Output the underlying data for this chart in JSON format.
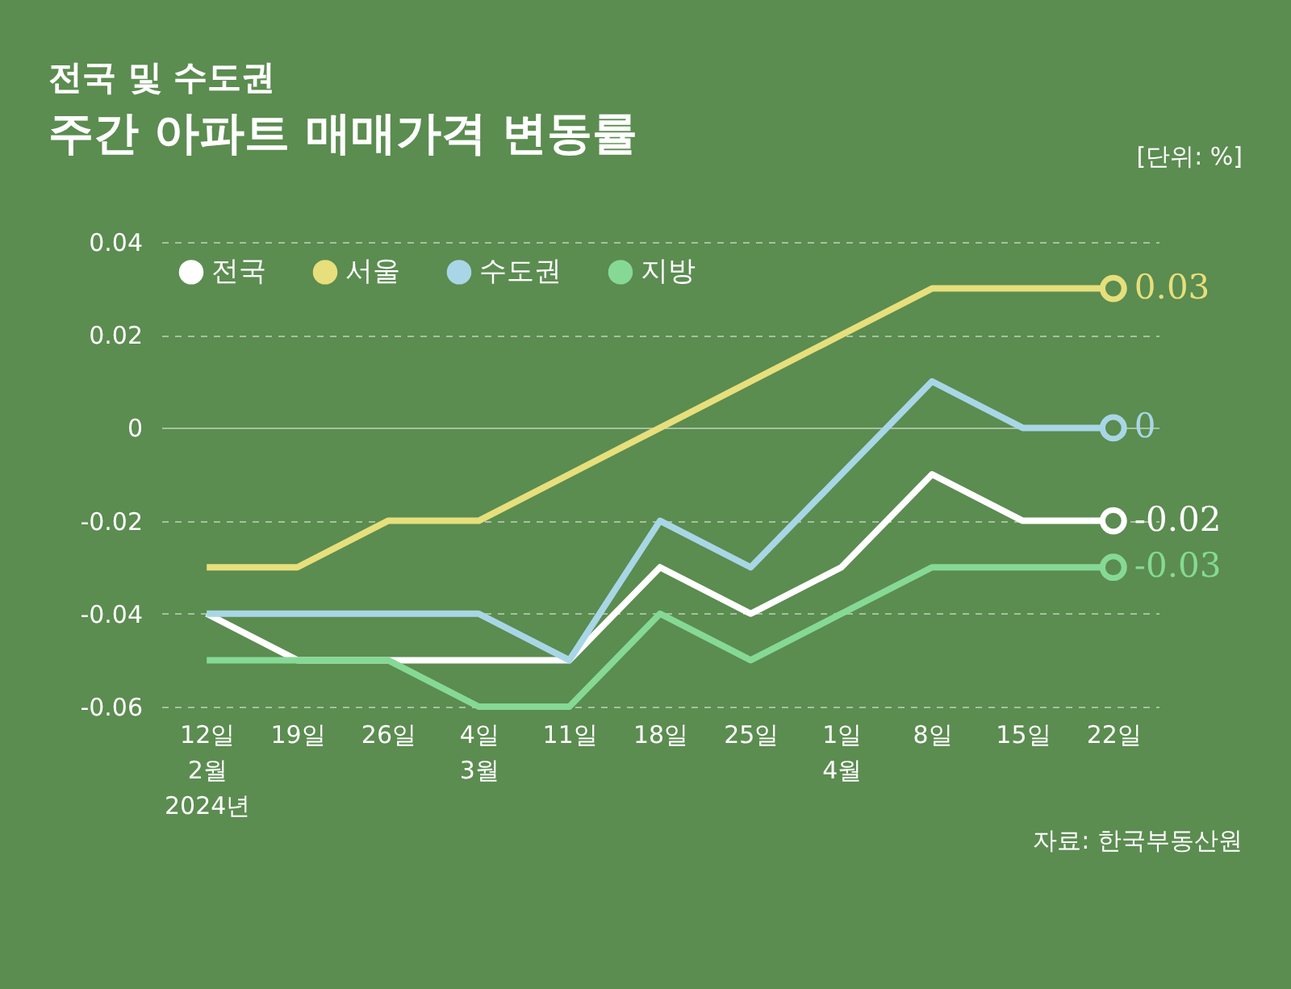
{
  "chart_data": {
    "type": "line",
    "title": "전국 및 수도권",
    "subtitle": "주간 아파트 매매가격 변동률",
    "annotations": [
      "[단위: %]",
      "자료: 한국부동산원"
    ],
    "categories": [
      "12일\n2월\n2024년",
      "19일",
      "26일",
      "4일\n3월",
      "11일",
      "18일",
      "25일",
      "1일\n4월",
      "8일",
      "15일",
      "22일"
    ],
    "series": [
      {
        "name": "전국",
        "color": "#ffffff",
        "values": [
          -0.04,
          -0.05,
          -0.05,
          -0.05,
          -0.05,
          -0.03,
          -0.04,
          -0.03,
          -0.01,
          -0.02,
          -0.02
        ],
        "value_labels": [
          null,
          null,
          null,
          null,
          null,
          null,
          null,
          null,
          null,
          null,
          "-0.02"
        ]
      },
      {
        "name": "서울",
        "color": "#e6df7c",
        "values": [
          -0.03,
          -0.03,
          -0.02,
          -0.02,
          -0.01,
          0,
          0.01,
          0.02,
          0.03,
          0.03,
          0.03
        ],
        "value_labels": [
          null,
          null,
          null,
          null,
          null,
          null,
          null,
          null,
          null,
          null,
          "0.03"
        ]
      },
      {
        "name": "수도권",
        "color": "#a9d6e6",
        "values": [
          -0.04,
          -0.04,
          -0.04,
          -0.04,
          -0.05,
          -0.02,
          -0.03,
          -0.01,
          0.01,
          0,
          0
        ],
        "value_labels": [
          null,
          null,
          null,
          null,
          null,
          null,
          null,
          null,
          null,
          null,
          "0"
        ]
      },
      {
        "name": "지방",
        "color": "#86d995",
        "values": [
          -0.05,
          -0.05,
          -0.05,
          -0.06,
          -0.06,
          -0.04,
          -0.05,
          -0.04,
          -0.03,
          -0.03,
          -0.03
        ],
        "value_labels": [
          null,
          null,
          null,
          null,
          null,
          null,
          null,
          null,
          null,
          null,
          "-0.03"
        ]
      }
    ],
    "ylim": [
      -0.06,
      0.04
    ],
    "yticks": [
      -0.06,
      -0.04,
      -0.02,
      0,
      0.02,
      0.04
    ],
    "grid": "y",
    "legend": "top left",
    "line_style": "solid"
  }
}
